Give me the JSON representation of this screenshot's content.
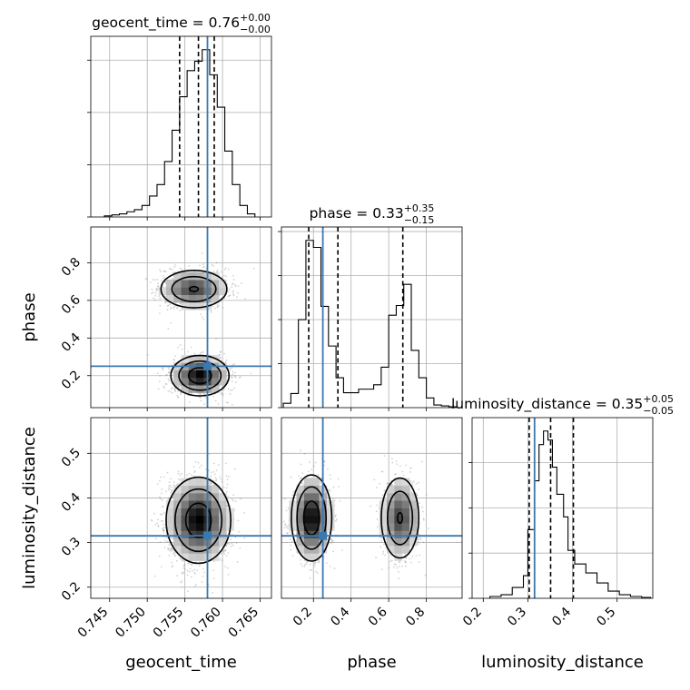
{
  "chart_data": {
    "type": "corner",
    "parameters": [
      "geocent_time",
      "phase",
      "luminosity_distance"
    ],
    "axis_labels": [
      "geocent_time",
      "phase",
      "luminosity_distance"
    ],
    "ranges": [
      [
        0.7425,
        0.7665
      ],
      [
        0.03,
        0.99
      ],
      [
        0.175,
        0.58
      ]
    ],
    "ticks": {
      "geocent_time": [
        "0.745",
        "0.750",
        "0.755",
        "0.760",
        "0.765"
      ],
      "phase": [
        "0.2",
        "0.4",
        "0.6",
        "0.8"
      ],
      "luminosity_distance": [
        "0.2",
        "0.3",
        "0.4",
        "0.5"
      ]
    },
    "truths": {
      "geocent_time": 0.758,
      "phase": 0.25,
      "luminosity_distance": 0.315
    },
    "titles": [
      {
        "param": "geocent_time",
        "label": "geocent_time",
        "median": "0.76",
        "plus": "+0.00",
        "minus": "−0.00"
      },
      {
        "param": "phase",
        "label": "phase",
        "median": "0.33",
        "plus": "+0.35",
        "minus": "−0.15"
      },
      {
        "param": "luminosity_distance",
        "label": "luminosity_distance",
        "median": "0.35",
        "plus": "+0.05",
        "minus": "−0.05"
      }
    ],
    "quantile_lines": {
      "geocent_time": [
        0.7543,
        0.7568,
        0.7589
      ],
      "phase": [
        0.175,
        0.33,
        0.675
      ],
      "luminosity_distance": [
        0.303,
        0.351,
        0.402
      ]
    },
    "histograms": {
      "geocent_time": {
        "edges": [
          0.7443,
          0.7453,
          0.7463,
          0.7473,
          0.7483,
          0.7493,
          0.7503,
          0.7513,
          0.7523,
          0.7533,
          0.7543,
          0.7553,
          0.7563,
          0.7573,
          0.7583,
          0.7593,
          0.7603,
          0.7613,
          0.7623,
          0.7633,
          0.7643
        ],
        "counts": [
          1,
          2,
          3,
          5,
          7,
          11,
          20,
          31,
          53,
          83,
          115,
          140,
          149,
          160,
          136,
          105,
          63,
          31,
          11,
          3
        ]
      },
      "phase": {
        "edges": [
          0.04,
          0.08,
          0.12,
          0.16,
          0.2,
          0.24,
          0.28,
          0.32,
          0.36,
          0.4,
          0.44,
          0.48,
          0.52,
          0.56,
          0.6,
          0.64,
          0.68,
          0.72,
          0.76,
          0.8,
          0.84,
          0.88,
          0.92,
          0.96
        ],
        "counts": [
          5,
          16,
          100,
          190,
          182,
          115,
          70,
          34,
          17,
          17,
          21,
          21,
          26,
          46,
          105,
          116,
          140,
          65,
          34,
          11,
          3,
          2,
          1
        ]
      },
      "luminosity_distance": {
        "edges": [
          0.215,
          0.24,
          0.265,
          0.29,
          0.3,
          0.315,
          0.325,
          0.335,
          0.345,
          0.355,
          0.365,
          0.38,
          0.39,
          0.405,
          0.43,
          0.455,
          0.48,
          0.505,
          0.53,
          0.555,
          0.575
        ],
        "counts": [
          2,
          4,
          12,
          25,
          76,
          130,
          170,
          185,
          175,
          145,
          115,
          90,
          53,
          38,
          28,
          17,
          8,
          4,
          2,
          1
        ]
      }
    },
    "distributions": {
      "geocent_time": [
        [
          0.7568,
          0.0018,
          0.56
        ],
        [
          0.7565,
          0.0025,
          0.44
        ]
      ],
      "phase": [
        [
          0.2,
          0.05,
          0.58
        ],
        [
          0.66,
          0.05,
          0.42
        ]
      ],
      "luminosity_distance": [
        [
          0.35,
          0.045,
          1.0
        ]
      ]
    },
    "joint_modes": {
      "geocent_time-phase": [
        [
          0.757,
          0.2,
          0.0018,
          0.05,
          0.58
        ],
        [
          0.7562,
          0.66,
          0.0022,
          0.05,
          0.42
        ]
      ],
      "geocent_time-luminosity_distance": [
        [
          0.7568,
          0.35,
          0.002,
          0.045,
          1.0
        ]
      ],
      "phase-luminosity_distance": [
        [
          0.19,
          0.355,
          0.05,
          0.045,
          0.58
        ],
        [
          0.66,
          0.355,
          0.05,
          0.045,
          0.42
        ]
      ]
    },
    "contour_levels": [
      0.7,
      0.3,
      0.1
    ],
    "colors": {
      "truth": "#3b78b0",
      "contour": "#000000",
      "grid": "#b0b0b0",
      "points": "#808080"
    }
  }
}
